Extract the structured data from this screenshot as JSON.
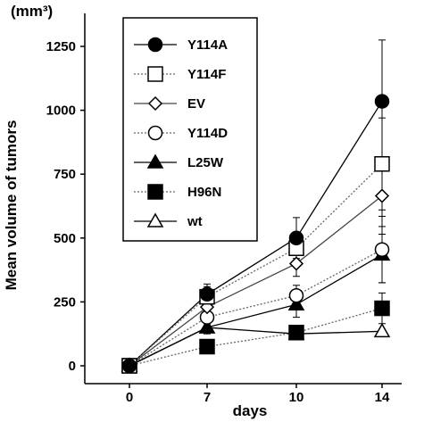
{
  "chart_data": {
    "type": "line",
    "unit_label": "(mm³)",
    "ylabel": "Mean volume of tumors",
    "xlabel": "days",
    "x": [
      0,
      7,
      10,
      14
    ],
    "x_tick_labels": [
      "0",
      "7",
      "10",
      "14"
    ],
    "y_ticks": [
      0,
      250,
      500,
      750,
      1000,
      1250
    ],
    "y_tick_labels": [
      "0",
      "250",
      "500",
      "750",
      "1000",
      "1250"
    ],
    "ylim": [
      -40,
      1380
    ],
    "legend_position": "top-left",
    "series": [
      {
        "name": "Y114A",
        "marker": "filled-circle",
        "line": "solid",
        "color": "#000000",
        "values": [
          0,
          280,
          500,
          1035
        ],
        "error": [
          0,
          40,
          80,
          240
        ]
      },
      {
        "name": "Y114F",
        "marker": "open-square",
        "line": "dotted",
        "color": "#666666",
        "values": [
          0,
          270,
          460,
          790
        ],
        "error": [
          0,
          40,
          60,
          180
        ]
      },
      {
        "name": "EV",
        "marker": "open-diamond",
        "line": "solid",
        "color": "#444444",
        "values": [
          0,
          230,
          400,
          665
        ],
        "error": [
          0,
          30,
          50,
          150
        ]
      },
      {
        "name": "Y114D",
        "marker": "open-circle",
        "line": "dotted",
        "color": "#666666",
        "values": [
          0,
          190,
          275,
          455
        ],
        "error": [
          0,
          30,
          40,
          130
        ]
      },
      {
        "name": "L25W",
        "marker": "filled-triangle",
        "line": "solid",
        "color": "#000000",
        "values": [
          0,
          150,
          240,
          435
        ],
        "error": [
          0,
          25,
          50,
          110
        ]
      },
      {
        "name": "H96N",
        "marker": "filled-square",
        "line": "dotted",
        "color": "#666666",
        "values": [
          0,
          75,
          130,
          225
        ],
        "error": [
          0,
          20,
          20,
          60
        ]
      },
      {
        "name": "wt",
        "marker": "open-triangle",
        "line": "solid",
        "color": "#000000",
        "values": [
          0,
          150,
          125,
          135
        ],
        "error": [
          0,
          0,
          0,
          0
        ]
      }
    ]
  }
}
